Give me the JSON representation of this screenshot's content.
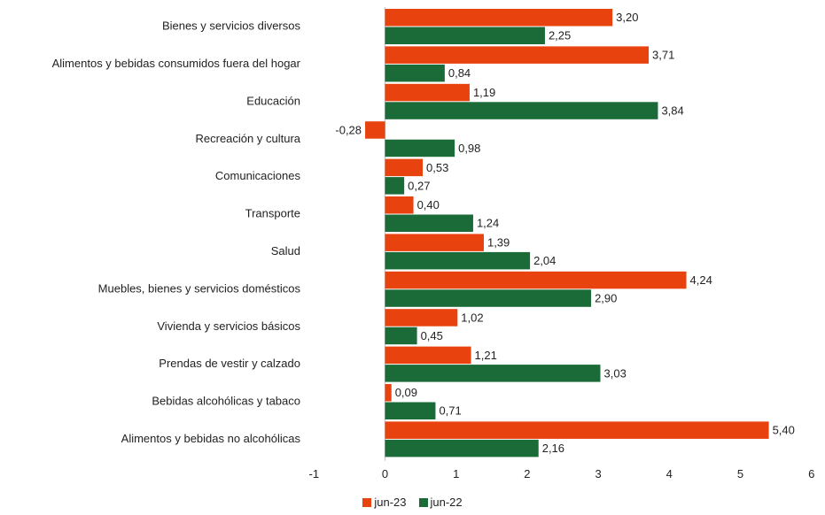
{
  "chart_data": {
    "type": "bar",
    "orientation": "horizontal",
    "categories": [
      "Bienes y servicios diversos",
      "Alimentos y bebidas consumidos fuera del hogar",
      "Educación",
      "Recreación y cultura",
      "Comunicaciones",
      "Transporte",
      "Salud",
      "Muebles, bienes y servicios domésticos",
      "Vivienda y servicios básicos",
      "Prendas de vestir y calzado",
      "Bebidas alcohólicas y tabaco",
      "Alimentos y bebidas no alcohólicas"
    ],
    "series": [
      {
        "name": "jun-23",
        "color": "#e8420e",
        "values": [
          3.2,
          3.71,
          1.19,
          -0.28,
          0.53,
          0.4,
          1.39,
          4.24,
          1.02,
          1.21,
          0.09,
          5.4
        ],
        "labels": [
          "3,20",
          "3,71",
          "1,19",
          "-0,28",
          "0,53",
          "0,40",
          "1,39",
          "4,24",
          "1,02",
          "1,21",
          "0,09",
          "5,40"
        ]
      },
      {
        "name": "jun-22",
        "color": "#1a6b37",
        "values": [
          2.25,
          0.84,
          3.84,
          0.98,
          0.27,
          1.24,
          2.04,
          2.9,
          0.45,
          3.03,
          0.71,
          2.16
        ],
        "labels": [
          "2,25",
          "0,84",
          "3,84",
          "0,98",
          "0,27",
          "1,24",
          "2,04",
          "2,90",
          "0,45",
          "3,03",
          "0,71",
          "2,16"
        ]
      }
    ],
    "xlim": [
      -1,
      6
    ],
    "xticks": [
      "-1",
      "0",
      "1",
      "2",
      "3",
      "4",
      "5",
      "6"
    ],
    "title": "",
    "xlabel": "",
    "ylabel": "",
    "grid": false,
    "legend_position": "bottom"
  }
}
